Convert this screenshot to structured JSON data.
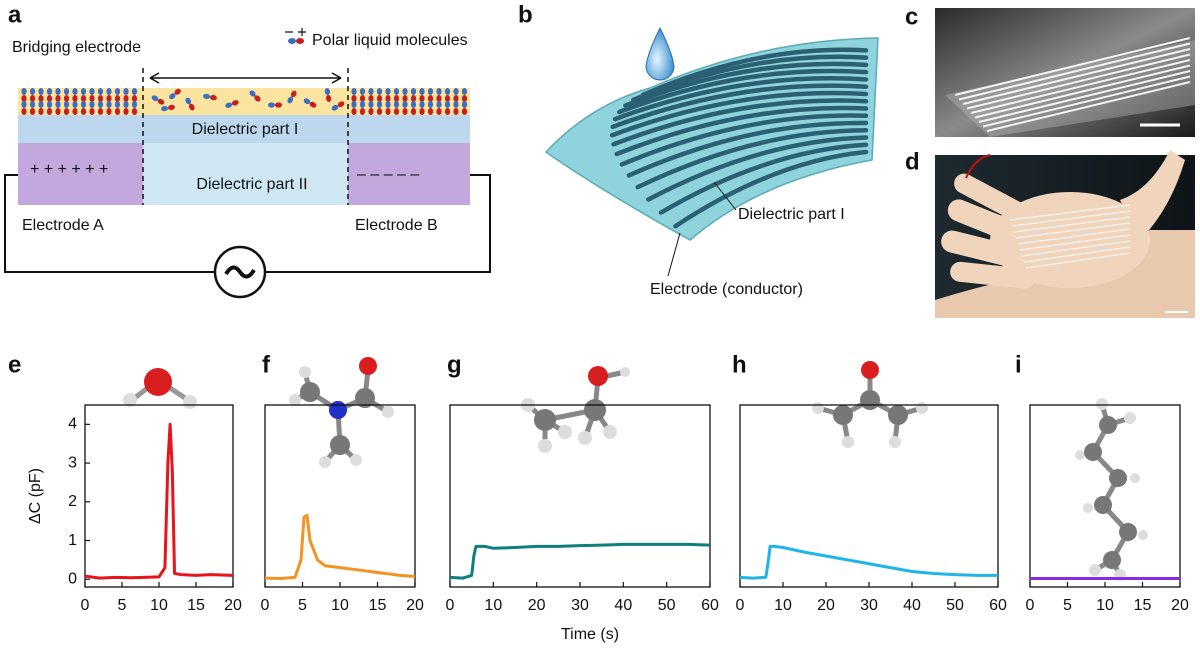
{
  "labels": [
    "a",
    "b",
    "c",
    "d"
  ],
  "panel_a": {
    "bridging": "Bridging electrode",
    "legend": "Polar liquid molecules",
    "dielectric_1": "Dielectric part I",
    "dielectric_2": "Dielectric part II",
    "electrode_a": "Electrode A",
    "electrode_b": "Electrode B",
    "plus": "+ + + + + +",
    "minus": "– – – – –"
  },
  "panel_b": {
    "dielectric": "Dielectric part I",
    "electrode": "Electrode (conductor)"
  },
  "chart_data": [
    {
      "type": "line",
      "label": "e",
      "ylabel": "ΔC (pF)",
      "color": "#e8141c",
      "x": [
        0,
        2,
        4,
        6,
        8,
        10,
        10.8,
        11.2,
        11.5,
        11.8,
        12.1,
        13,
        15,
        17,
        20
      ],
      "values": [
        0.08,
        0.03,
        0.05,
        0.04,
        0.05,
        0.06,
        0.3,
        3.0,
        4.0,
        2.8,
        0.15,
        0.12,
        0.1,
        0.12,
        0.1
      ],
      "xlim": [
        0,
        20
      ],
      "xticks": [
        0,
        5,
        10,
        15,
        20
      ],
      "ylim": [
        -0.2,
        4.5
      ],
      "yticks": [
        0,
        1,
        2,
        3,
        4
      ]
    },
    {
      "type": "line",
      "label": "f",
      "color": "#f39321",
      "x": [
        0,
        2,
        4,
        4.8,
        5.2,
        5.6,
        6,
        7,
        8,
        10,
        12,
        14,
        16,
        18,
        20
      ],
      "values": [
        0.03,
        0.02,
        0.05,
        0.5,
        1.6,
        1.65,
        1.0,
        0.5,
        0.35,
        0.3,
        0.25,
        0.2,
        0.15,
        0.1,
        0.07
      ],
      "xlim": [
        0,
        20
      ],
      "xticks": [
        0,
        5,
        10,
        15,
        20
      ],
      "ylim": [
        -0.2,
        4.5
      ]
    },
    {
      "type": "line",
      "label": "g",
      "xlabel": "Time (s)",
      "color": "#0d7f7c",
      "x": [
        0,
        3,
        5,
        5.5,
        6,
        8,
        10,
        15,
        20,
        25,
        30,
        35,
        40,
        45,
        50,
        55,
        60
      ],
      "values": [
        0.05,
        0.03,
        0.1,
        0.6,
        0.85,
        0.85,
        0.8,
        0.82,
        0.85,
        0.85,
        0.87,
        0.88,
        0.9,
        0.9,
        0.9,
        0.9,
        0.88
      ],
      "xlim": [
        0,
        60
      ],
      "xticks": [
        0,
        10,
        20,
        30,
        40,
        50,
        60
      ],
      "ylim": [
        -0.2,
        4.5
      ]
    },
    {
      "type": "line",
      "label": "h",
      "color": "#1fb5e9",
      "x": [
        0,
        3,
        6,
        6.5,
        7,
        8,
        10,
        15,
        20,
        25,
        30,
        35,
        40,
        45,
        50,
        55,
        60
      ],
      "values": [
        0.05,
        0.03,
        0.05,
        0.4,
        0.85,
        0.85,
        0.82,
        0.7,
        0.6,
        0.5,
        0.4,
        0.3,
        0.2,
        0.15,
        0.12,
        0.1,
        0.1
      ],
      "xlim": [
        0,
        60
      ],
      "xticks": [
        0,
        10,
        20,
        30,
        40,
        50,
        60
      ],
      "ylim": [
        -0.2,
        4.5
      ]
    },
    {
      "type": "line",
      "label": "i",
      "color": "#8a2be2",
      "x": [
        0,
        5,
        10,
        15,
        20
      ],
      "values": [
        0.02,
        0.02,
        0.02,
        0.02,
        0.02
      ],
      "xlim": [
        0,
        20
      ],
      "xticks": [
        0,
        5,
        10,
        15,
        20
      ],
      "ylim": [
        -0.2,
        4.5
      ]
    }
  ]
}
